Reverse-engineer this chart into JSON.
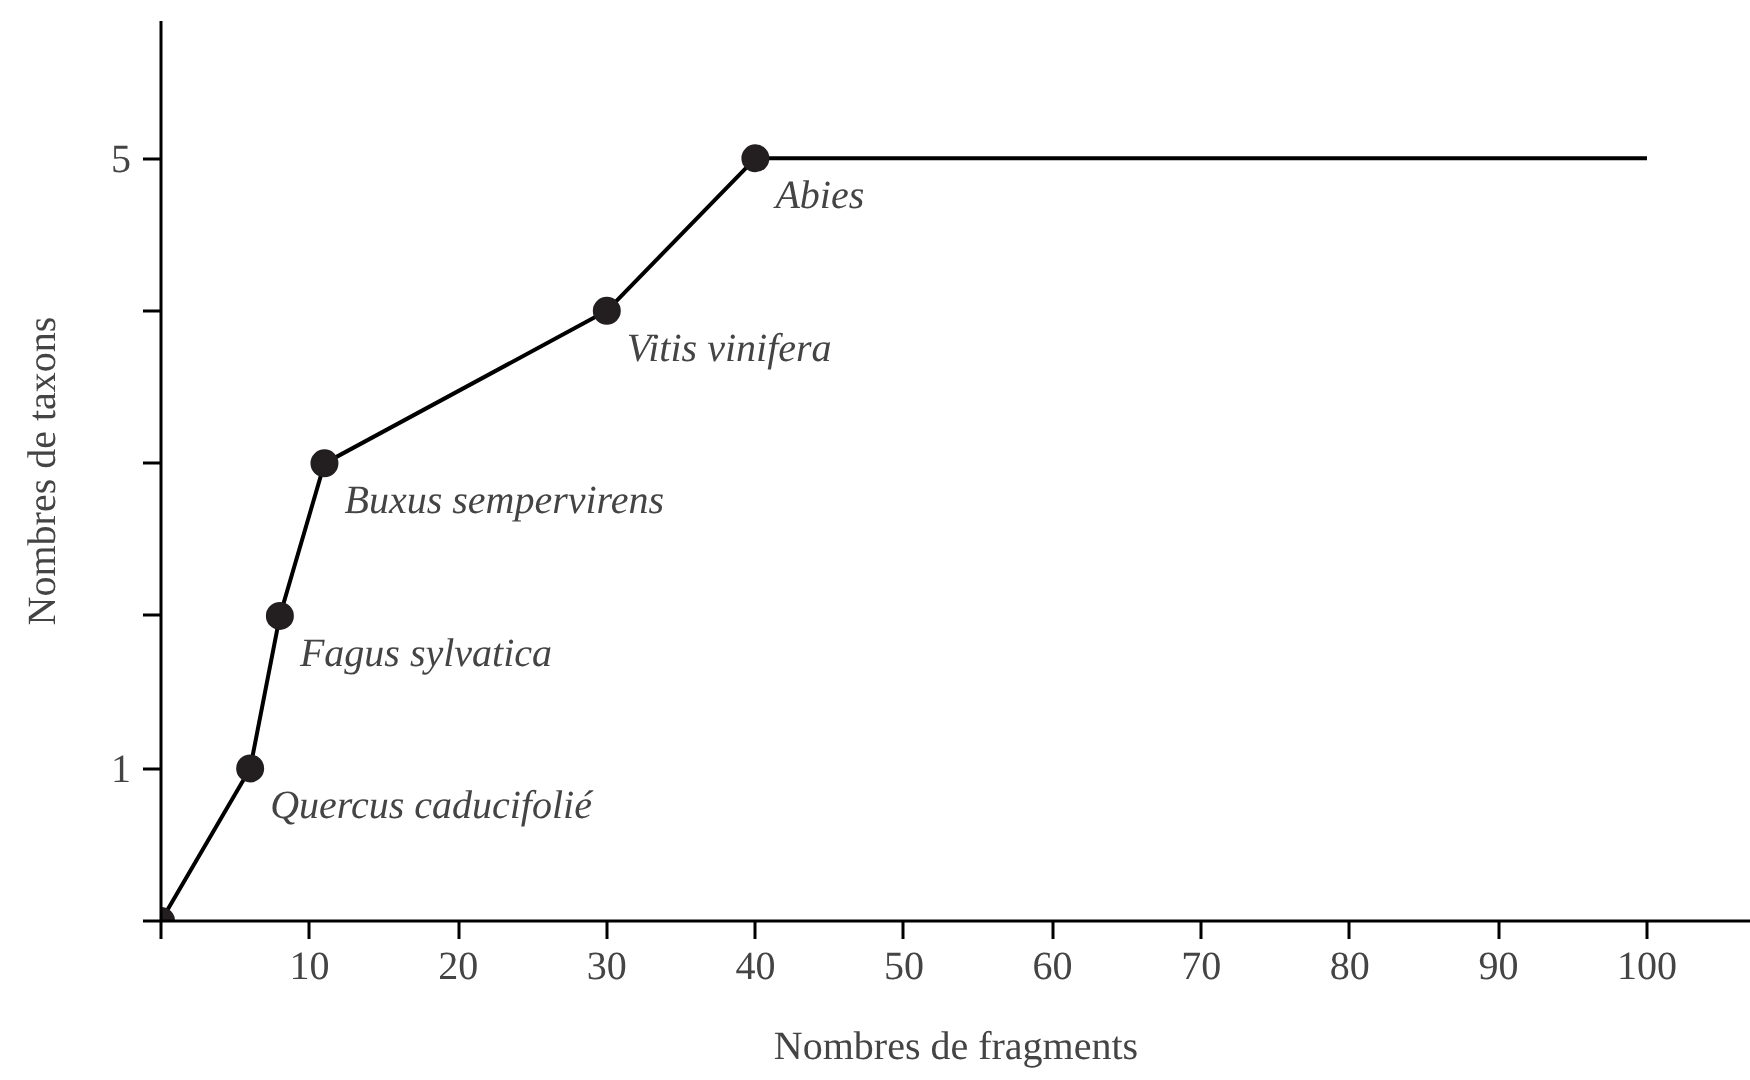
{
  "chart_data": {
    "type": "line",
    "xlabel": "Nombres de fragments",
    "ylabel": "Nombres de taxons",
    "xlim": [
      0,
      107
    ],
    "ylim": [
      0,
      5.9
    ],
    "xticks": [
      {
        "value": 0,
        "label": null
      },
      10,
      20,
      30,
      40,
      50,
      60,
      70,
      80,
      90,
      100
    ],
    "yticks": [
      {
        "value": 0,
        "label": null
      },
      1,
      {
        "value": 2,
        "label": null
      },
      {
        "value": 3,
        "label": null
      },
      {
        "value": 4,
        "label": null
      },
      5
    ],
    "grid": false,
    "series": [
      {
        "color": "#000000",
        "marker": "none",
        "x": [
          0,
          6,
          8,
          11,
          30,
          40,
          100
        ],
        "values": [
          0,
          1,
          2,
          3,
          4,
          5,
          5
        ]
      },
      {
        "type": "scatter",
        "color": "#231f20",
        "marker": "circle",
        "x": [
          0,
          6,
          8,
          11,
          30,
          40
        ],
        "values": [
          0,
          1,
          2,
          3,
          4,
          5
        ]
      }
    ],
    "annotations": [
      {
        "text": "Quercus caducifolié",
        "x": 6,
        "y": 1
      },
      {
        "text": "Fagus sylvatica",
        "x": 8,
        "y": 2
      },
      {
        "text": "Buxus sempervirens",
        "x": 11,
        "y": 3
      },
      {
        "text": "Vitis vinifera",
        "x": 30,
        "y": 4
      },
      {
        "text": "Abies",
        "x": 40,
        "y": 5
      }
    ]
  }
}
